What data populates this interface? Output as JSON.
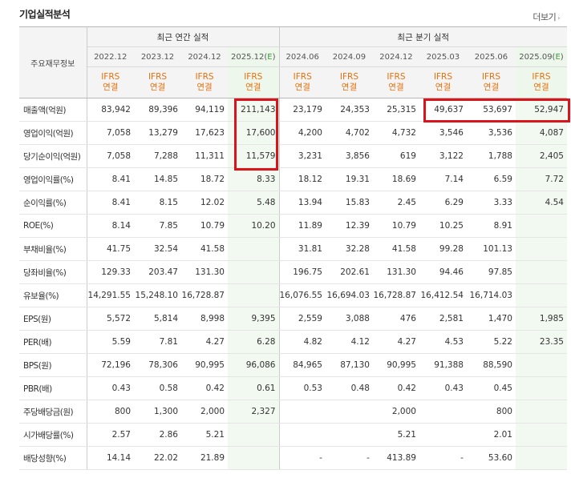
{
  "header": {
    "title": "기업실적분석",
    "more_label": "더보기",
    "more_arrow": "›"
  },
  "table": {
    "label_header": "주요재무정보",
    "group_annual": "최근 연간 실적",
    "group_quarter": "최근 분기 실적",
    "periods": [
      "2022.12",
      "2023.12",
      "2024.12",
      "2025.12(E)",
      "2024.06",
      "2024.09",
      "2024.12",
      "2025.03",
      "2025.06",
      "2025.09(E)"
    ],
    "standard_top": "IFRS",
    "standard_bottom": "연결",
    "rows": [
      {
        "name": "매출액(억원)",
        "values": [
          "83,942",
          "89,396",
          "94,119",
          "211,143",
          "23,179",
          "24,353",
          "25,315",
          "49,637",
          "53,697",
          "52,947"
        ]
      },
      {
        "name": "영업이익(억원)",
        "values": [
          "7,058",
          "13,279",
          "17,623",
          "17,600",
          "4,200",
          "4,702",
          "4,732",
          "3,546",
          "3,536",
          "4,087"
        ]
      },
      {
        "name": "당기순이익(억원)",
        "values": [
          "7,058",
          "7,288",
          "11,311",
          "11,579",
          "3,231",
          "3,856",
          "619",
          "3,122",
          "1,788",
          "2,405"
        ]
      },
      {
        "name": "영업이익률(%)",
        "values": [
          "8.41",
          "14.85",
          "18.72",
          "8.33",
          "18.12",
          "19.31",
          "18.69",
          "7.14",
          "6.59",
          "7.72"
        ]
      },
      {
        "name": "순이익률(%)",
        "values": [
          "8.41",
          "8.15",
          "12.02",
          "5.48",
          "13.94",
          "15.83",
          "2.45",
          "6.29",
          "3.33",
          "4.54"
        ]
      },
      {
        "name": "ROE(%)",
        "values": [
          "8.14",
          "7.85",
          "10.79",
          "10.20",
          "11.89",
          "12.39",
          "10.79",
          "10.25",
          "8.91",
          ""
        ]
      },
      {
        "name": "부채비율(%)",
        "values": [
          "41.75",
          "32.54",
          "41.58",
          "",
          "31.81",
          "32.28",
          "41.58",
          "99.28",
          "101.13",
          ""
        ]
      },
      {
        "name": "당좌비율(%)",
        "values": [
          "129.33",
          "203.47",
          "131.30",
          "",
          "196.75",
          "202.61",
          "131.30",
          "94.46",
          "97.85",
          ""
        ]
      },
      {
        "name": "유보율(%)",
        "values": [
          "14,291.55",
          "15,248.10",
          "16,728.87",
          "",
          "16,076.55",
          "16,694.03",
          "16,728.87",
          "16,412.54",
          "16,714.03",
          ""
        ]
      },
      {
        "name": "EPS(원)",
        "values": [
          "5,572",
          "5,814",
          "8,998",
          "9,395",
          "2,559",
          "3,088",
          "476",
          "2,581",
          "1,470",
          "1,985"
        ]
      },
      {
        "name": "PER(배)",
        "values": [
          "5.59",
          "7.81",
          "4.27",
          "6.28",
          "4.82",
          "4.12",
          "4.27",
          "4.53",
          "5.22",
          "23.35"
        ]
      },
      {
        "name": "BPS(원)",
        "values": [
          "72,196",
          "78,306",
          "90,995",
          "96,086",
          "84,965",
          "87,130",
          "90,995",
          "91,388",
          "88,590",
          ""
        ]
      },
      {
        "name": "PBR(배)",
        "values": [
          "0.43",
          "0.58",
          "0.42",
          "0.61",
          "0.53",
          "0.48",
          "0.42",
          "0.43",
          "0.45",
          ""
        ]
      },
      {
        "name": "주당배당금(원)",
        "values": [
          "800",
          "1,300",
          "2,000",
          "2,327",
          "",
          "",
          "2,000",
          "",
          "800",
          ""
        ]
      },
      {
        "name": "시가배당률(%)",
        "values": [
          "2.57",
          "2.86",
          "5.21",
          "",
          "",
          "",
          "5.21",
          "",
          "2.01",
          ""
        ]
      },
      {
        "name": "배당성향(%)",
        "values": [
          "14.14",
          "22.02",
          "21.89",
          "",
          "-",
          "-",
          "413.89",
          "-",
          "53.60",
          ""
        ]
      }
    ]
  },
  "colors": {
    "highlight": "#d9141b",
    "ifrs_text": "#e8700a",
    "estimate_bg": "#eef7ec",
    "estimate_mark": "#3c9a3c"
  }
}
